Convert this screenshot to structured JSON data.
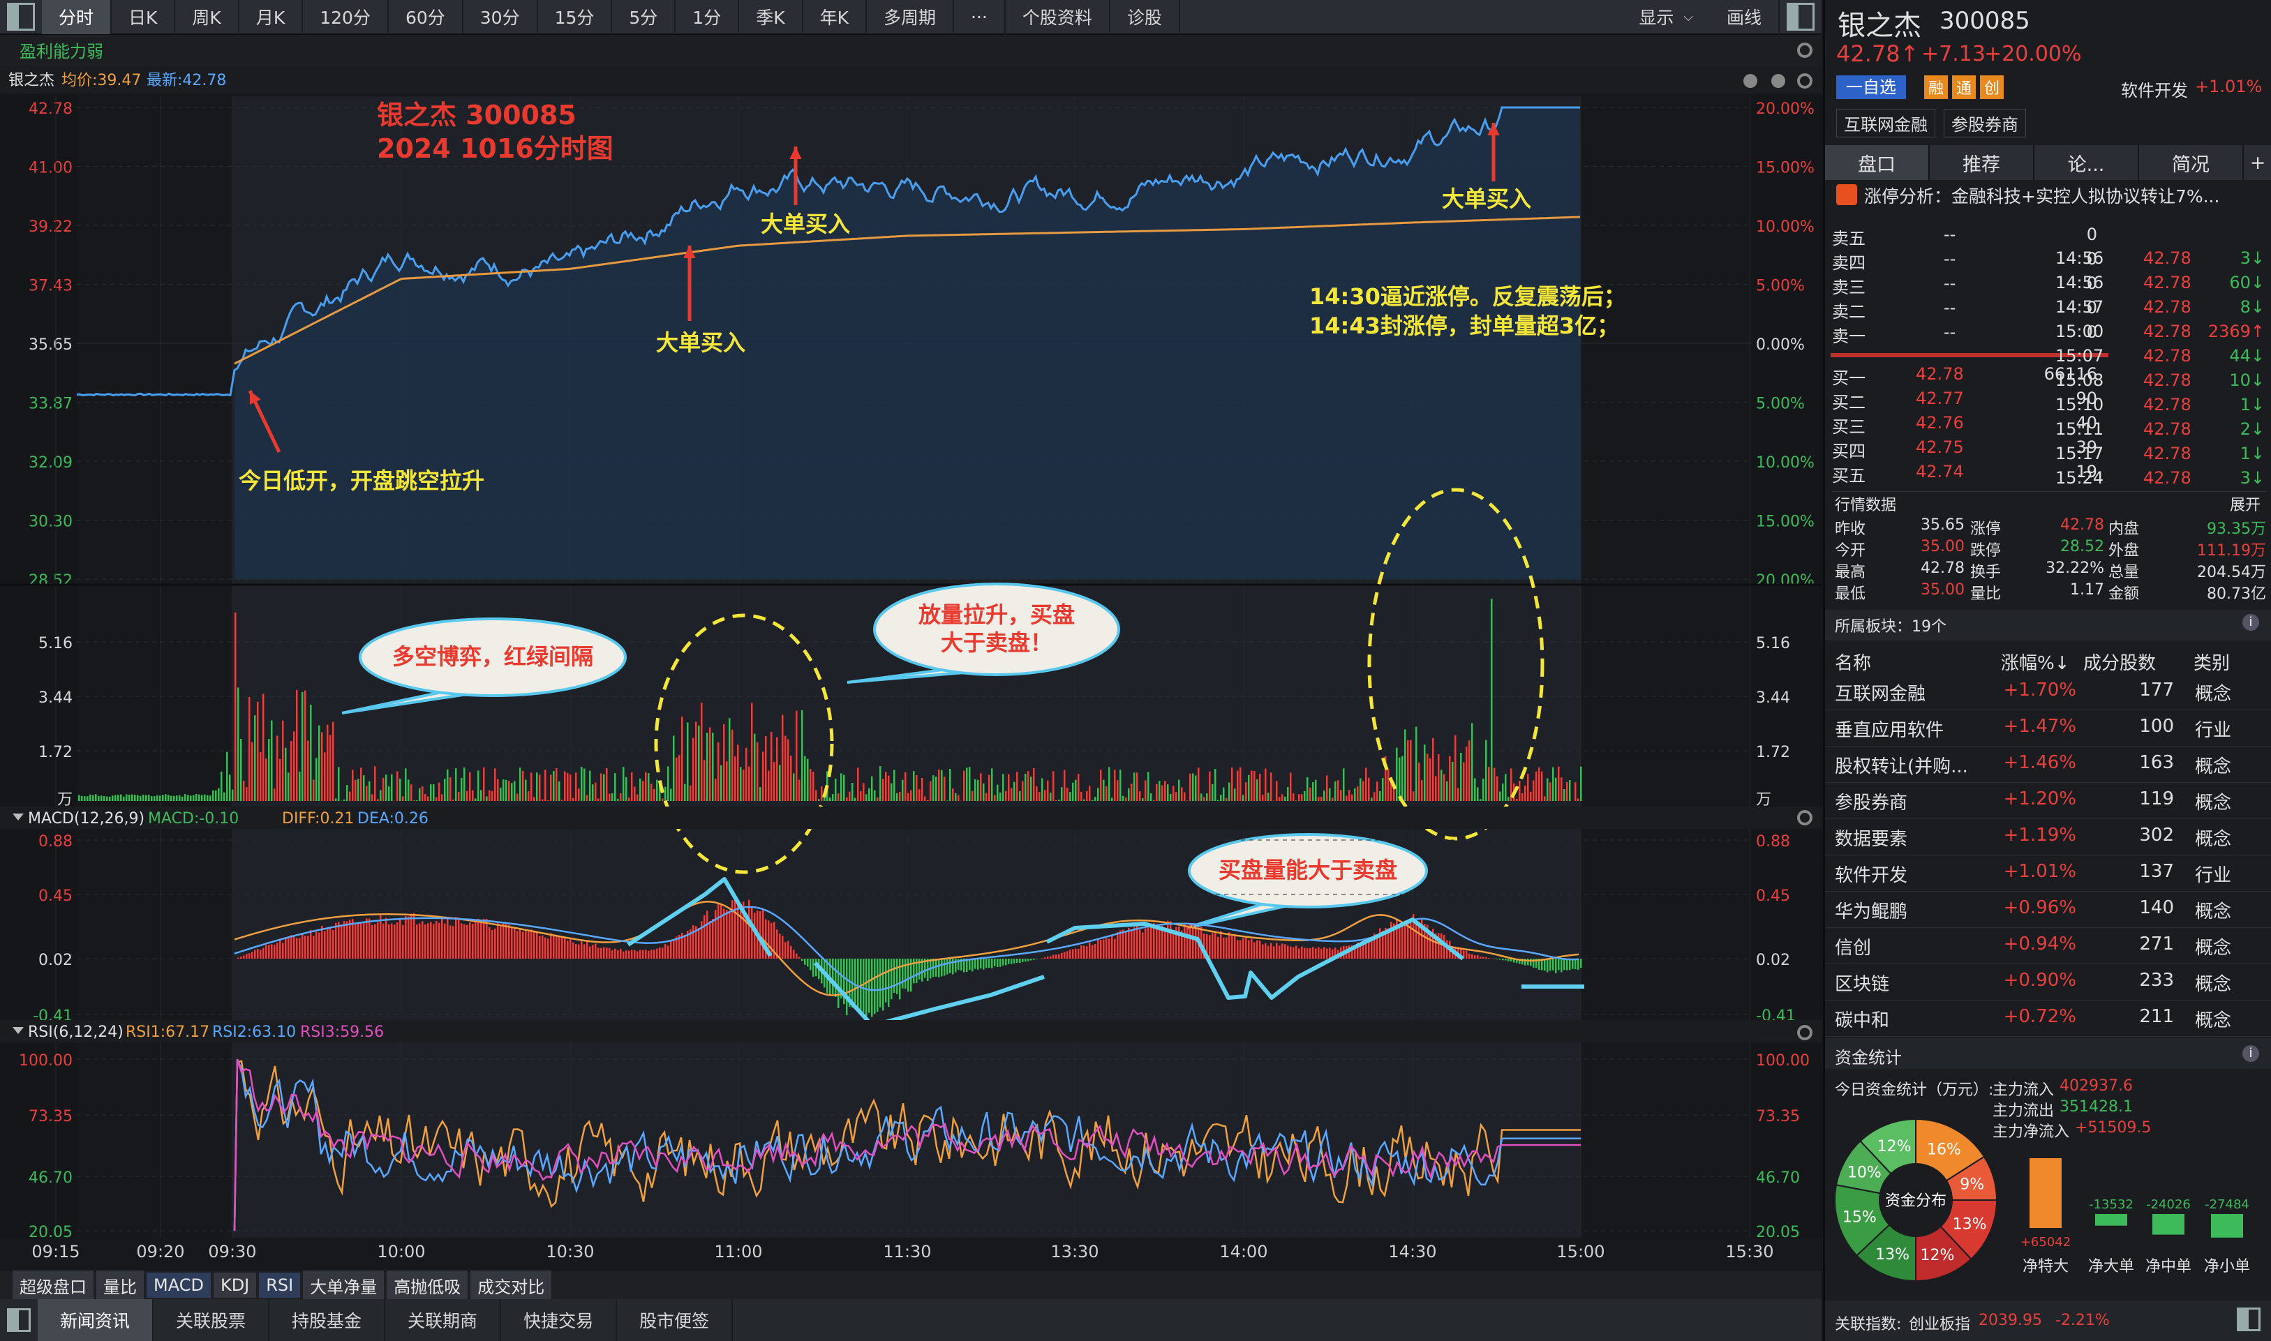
{
  "toolbar": {
    "tabs": [
      "分时",
      "日K",
      "周K",
      "月K",
      "120分",
      "60分",
      "30分",
      "15分",
      "5分",
      "1分",
      "季K",
      "年K",
      "多周期",
      "···",
      "个股资料",
      "诊股"
    ],
    "active": 0,
    "right": [
      "显示",
      "画线"
    ]
  },
  "chart": {
    "header": "盈利能力弱",
    "legend": {
      "name": "银之杰",
      "avg": "均价:39.47",
      "last": "最新:42.78"
    },
    "price_axis_left": [
      "42.78",
      "41.00",
      "39.22",
      "37.43",
      "35.65",
      "33.87",
      "32.09",
      "30.30",
      "28.52"
    ],
    "price_axis_right": [
      "20.00%",
      "15.00%",
      "10.00%",
      "5.00%",
      "0.00%",
      "5.00%",
      "10.00%",
      "15.00%",
      "20.00%"
    ],
    "volume_axis": [
      "5.16",
      "3.44",
      "1.72",
      "万"
    ],
    "macd_label": {
      "name": "MACD(12,26,9)",
      "macd": "MACD:-0.10",
      "diff": "DIFF:0.21",
      "dea": "DEA:0.26"
    },
    "macd_axis": [
      "0.88",
      "0.45",
      "0.02",
      "-0.41"
    ],
    "rsi_label": {
      "name": "RSI(6,12,24)",
      "r1": "RSI1:67.17",
      "r2": "RSI2:63.10",
      "r3": "RSI3:59.56"
    },
    "rsi_axis": [
      "100.00",
      "73.35",
      "46.70",
      "20.05"
    ],
    "time_axis": [
      "09:15",
      "09:20",
      "09:30",
      "10:00",
      "10:30",
      "11:00",
      "11:30",
      "13:30",
      "14:00",
      "14:30",
      "15:00",
      "15:30"
    ],
    "annotations": {
      "title1": "银之杰 300085",
      "title2": "2024 1016分时图",
      "open": "今日低开，开盘跳空拉升",
      "buy": "大单买入",
      "close1": "14:30逼近涨停。反复震荡后；",
      "close2": "14:43封涨停，封单量超3亿；",
      "bubble1": "多空博弈，红绿间隔",
      "bubble2a": "放量拉升，买盘",
      "bubble2b": "大于卖盘！",
      "bubble3": "买盘量能大于卖盘"
    }
  },
  "chart_data": {
    "type": "line",
    "title": "",
    "x": [
      "09:30",
      "10:00",
      "10:30",
      "11:00",
      "11:30",
      "13:30",
      "14:00",
      "14:30",
      "15:00"
    ],
    "series": [
      {
        "name": "最新",
        "values": [
          35.0,
          38.4,
          37.8,
          40.6,
          40.3,
          40.2,
          40.9,
          41.7,
          42.78
        ]
      },
      {
        "name": "均价",
        "values": [
          35.0,
          37.6,
          37.9,
          38.6,
          38.9,
          39.0,
          39.1,
          39.3,
          39.47
        ]
      }
    ],
    "ylim": [
      28.52,
      42.78
    ]
  },
  "bottom_tabs1": [
    "超级盘口",
    "量比",
    "MACD",
    "KDJ",
    "RSI",
    "大单净量",
    "高抛低吸",
    "成交对比"
  ],
  "bottom_tabs2": [
    "新闻资讯",
    "关联股票",
    "持股基金",
    "关联期商",
    "快捷交易",
    "股市便签"
  ],
  "quote": {
    "name": "银之杰",
    "code": "300085",
    "price": "42.78↑",
    "change": "+7.13",
    "pct": "+20.00%",
    "tag_add": "一自选",
    "badges": [
      "融",
      "通",
      "创"
    ],
    "sector": "软件开发",
    "sector_pct": "+1.01%",
    "concepts": [
      "互联网金融",
      "参股券商"
    ]
  },
  "panel_tabs": [
    "盘口",
    "推荐",
    "论...",
    "简况",
    "+"
  ],
  "news": "涨停分析：金融科技+实控人拟协议转让7%...",
  "sells": [
    {
      "l": "卖五",
      "p": "--",
      "v": "0"
    },
    {
      "l": "卖四",
      "p": "--",
      "v": "0"
    },
    {
      "l": "卖三",
      "p": "--",
      "v": "0"
    },
    {
      "l": "卖二",
      "p": "--",
      "v": "0"
    },
    {
      "l": "卖一",
      "p": "--",
      "v": "0"
    }
  ],
  "buys": [
    {
      "l": "买一",
      "p": "42.78",
      "v": "66116"
    },
    {
      "l": "买二",
      "p": "42.77",
      "v": "90"
    },
    {
      "l": "买三",
      "p": "42.76",
      "v": "40"
    },
    {
      "l": "买四",
      "p": "42.75",
      "v": "39"
    },
    {
      "l": "买五",
      "p": "42.74",
      "v": "19"
    }
  ],
  "ticks": [
    {
      "t": "14:56",
      "p": "42.78",
      "v": "3↓"
    },
    {
      "t": "14:56",
      "p": "42.78",
      "v": "60↓"
    },
    {
      "t": "14:57",
      "p": "42.78",
      "v": "8↓"
    },
    {
      "t": "15:00",
      "p": "42.78",
      "v": "2369↑"
    },
    {
      "t": "15:07",
      "p": "42.78",
      "v": "44↓"
    },
    {
      "t": "15:08",
      "p": "42.78",
      "v": "10↓"
    },
    {
      "t": "15:10",
      "p": "42.78",
      "v": "1↓"
    },
    {
      "t": "15:11",
      "p": "42.78",
      "v": "2↓"
    },
    {
      "t": "15:17",
      "p": "42.78",
      "v": "1↓"
    },
    {
      "t": "15:24",
      "p": "42.78",
      "v": "3↓"
    }
  ],
  "market": {
    "title": "行情数据",
    "expand": "展开",
    "rows": [
      [
        "昨收",
        "35.65",
        "涨停",
        "42.78",
        "内盘",
        "93.35万"
      ],
      [
        "今开",
        "35.00",
        "跌停",
        "28.52",
        "外盘",
        "111.19万"
      ],
      [
        "最高",
        "42.78",
        "换手",
        "32.22%",
        "总量",
        "204.54万"
      ],
      [
        "最低",
        "35.00",
        "量比",
        "1.17",
        "金额",
        "80.73亿"
      ]
    ]
  },
  "sectors": {
    "title": "所属板块：19个",
    "headers": [
      "名称",
      "涨幅%↓",
      "成分股数",
      "类别"
    ],
    "rows": [
      [
        "互联网金融",
        "+1.70%",
        "177",
        "概念"
      ],
      [
        "垂直应用软件",
        "+1.47%",
        "100",
        "行业"
      ],
      [
        "股权转让(并购...",
        "+1.46%",
        "163",
        "概念"
      ],
      [
        "参股券商",
        "+1.20%",
        "119",
        "概念"
      ],
      [
        "数据要素",
        "+1.19%",
        "302",
        "概念"
      ],
      [
        "软件开发",
        "+1.01%",
        "137",
        "行业"
      ],
      [
        "华为鲲鹏",
        "+0.96%",
        "140",
        "概念"
      ],
      [
        "信创",
        "+0.94%",
        "271",
        "概念"
      ],
      [
        "区块链",
        "+0.90%",
        "233",
        "概念"
      ],
      [
        "碳中和",
        "+0.72%",
        "211",
        "概念"
      ]
    ]
  },
  "funds": {
    "title": "资金统计",
    "sub": "今日资金统计（万元）:",
    "in": "主力流入",
    "in_v": "402937.6",
    "out": "主力流出",
    "out_v": "351428.1",
    "net": "主力净流入",
    "net_v": "+51509.5",
    "donut_center": "资金分布",
    "donut": [
      {
        "v": 16,
        "c": "#f0892b",
        "t": "16%"
      },
      {
        "v": 9,
        "c": "#e85a38",
        "t": "9%"
      },
      {
        "v": 13,
        "c": "#d83a32",
        "t": "13%"
      },
      {
        "v": 12,
        "c": "#c02c2c",
        "t": "12%"
      },
      {
        "v": 13,
        "c": "#2f8a3a",
        "t": "13%"
      },
      {
        "v": 15,
        "c": "#3a9d44",
        "t": "15%"
      },
      {
        "v": 10,
        "c": "#4cad55",
        "t": "10%"
      },
      {
        "v": 12,
        "c": "#5bbe62",
        "t": "12%"
      }
    ],
    "bars": [
      {
        "label": "净特大",
        "val": "+65042"
      },
      {
        "label": "净大单",
        "val": "-13532"
      },
      {
        "label": "净中单",
        "val": "-24026"
      },
      {
        "label": "净小单",
        "val": "-27484"
      }
    ]
  },
  "index": {
    "label": "关联指数:",
    "name": "创业板指",
    "val": "2039.95",
    "pct": "-2.21%"
  }
}
